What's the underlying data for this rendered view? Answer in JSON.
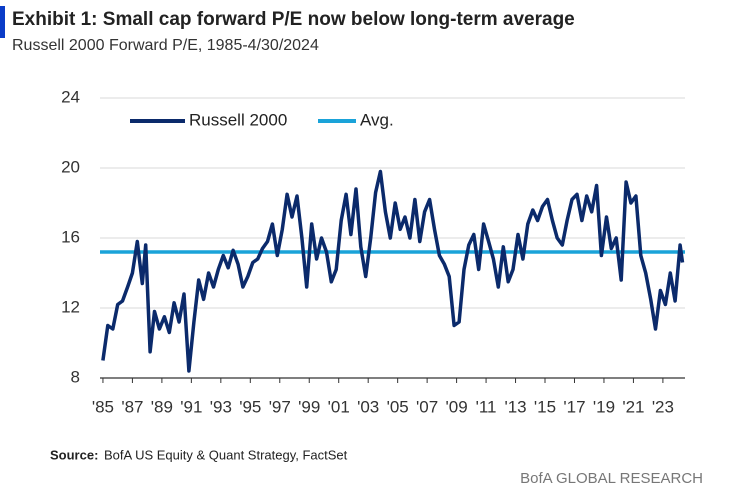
{
  "chart_data": {
    "type": "line",
    "title": "Exhibit 1: Small cap forward P/E now below long-term average",
    "subtitle": "Russell 2000 Forward P/E, 1985-4/30/2024",
    "source_label": "Source:",
    "source": "BofA US Equity & Quant Strategy, FactSet",
    "footer": "BofA GLOBAL RESEARCH",
    "x": [
      1985.0,
      1985.33,
      1985.67,
      1986.0,
      1986.33,
      1986.67,
      1987.0,
      1987.33,
      1987.67,
      1987.9,
      1988.2,
      1988.5,
      1988.83,
      1989.17,
      1989.5,
      1989.83,
      1990.17,
      1990.5,
      1990.83,
      1991.17,
      1991.5,
      1991.83,
      1992.17,
      1992.5,
      1992.83,
      1993.17,
      1993.5,
      1993.83,
      1994.17,
      1994.5,
      1994.83,
      1995.17,
      1995.5,
      1995.83,
      1996.17,
      1996.5,
      1996.83,
      1997.17,
      1997.5,
      1997.83,
      1998.17,
      1998.5,
      1998.83,
      1999.17,
      1999.5,
      1999.83,
      2000.17,
      2000.5,
      2000.83,
      2001.17,
      2001.5,
      2001.83,
      2002.17,
      2002.5,
      2002.83,
      2003.17,
      2003.5,
      2003.83,
      2004.17,
      2004.5,
      2004.83,
      2005.17,
      2005.5,
      2005.83,
      2006.17,
      2006.5,
      2006.83,
      2007.17,
      2007.5,
      2007.83,
      2008.17,
      2008.5,
      2008.83,
      2009.17,
      2009.5,
      2009.83,
      2010.17,
      2010.5,
      2010.83,
      2011.17,
      2011.5,
      2011.83,
      2012.17,
      2012.5,
      2012.83,
      2013.17,
      2013.5,
      2013.83,
      2014.17,
      2014.5,
      2014.83,
      2015.17,
      2015.5,
      2015.83,
      2016.17,
      2016.5,
      2016.83,
      2017.17,
      2017.5,
      2017.83,
      2018.17,
      2018.5,
      2018.83,
      2019.17,
      2019.5,
      2019.83,
      2020.17,
      2020.5,
      2020.83,
      2021.17,
      2021.5,
      2021.83,
      2022.17,
      2022.5,
      2022.83,
      2023.17,
      2023.5,
      2023.83,
      2024.17,
      2024.33
    ],
    "series": [
      {
        "name": "Russell 2000",
        "color": "#0b2a6b",
        "values": [
          9.0,
          11.0,
          10.8,
          12.2,
          12.4,
          13.2,
          14.0,
          15.8,
          13.4,
          15.6,
          9.5,
          11.8,
          10.8,
          11.5,
          10.6,
          12.3,
          11.2,
          12.8,
          8.4,
          11.2,
          13.6,
          12.5,
          14.0,
          13.2,
          14.2,
          15.0,
          14.3,
          15.3,
          14.5,
          13.2,
          13.8,
          14.6,
          14.8,
          15.4,
          15.8,
          16.8,
          15.0,
          16.5,
          18.5,
          17.2,
          18.4,
          16.0,
          13.2,
          16.8,
          14.8,
          16.0,
          15.2,
          13.5,
          14.2,
          17.0,
          18.5,
          16.2,
          18.8,
          15.5,
          13.8,
          16.0,
          18.6,
          19.8,
          17.5,
          16.0,
          18.0,
          16.5,
          17.2,
          16.0,
          18.2,
          15.8,
          17.5,
          18.2,
          16.5,
          15.0,
          14.5,
          13.8,
          11.0,
          11.2,
          14.2,
          15.6,
          16.2,
          14.2,
          16.8,
          15.8,
          14.8,
          13.2,
          15.5,
          13.5,
          14.2,
          16.2,
          14.8,
          16.8,
          17.6,
          17.0,
          17.8,
          18.2,
          17.0,
          16.0,
          15.6,
          17.0,
          18.2,
          18.5,
          17.0,
          18.4,
          17.5,
          19.0,
          15.0,
          17.2,
          15.4,
          16.0,
          13.6,
          19.2,
          18.0,
          18.4,
          15.0,
          14.0,
          12.5,
          10.8,
          13.0,
          12.2,
          14.0,
          12.4,
          15.6,
          14.6
        ]
      }
    ],
    "average": {
      "name": "Avg.",
      "value": 15.2,
      "color": "#1aa3d9"
    },
    "xlim": [
      1984.8,
      2024.5
    ],
    "xticks": [
      {
        "value": 1985,
        "label": "'85"
      },
      {
        "value": 1987,
        "label": "'87"
      },
      {
        "value": 1989,
        "label": "'89"
      },
      {
        "value": 1991,
        "label": "'91"
      },
      {
        "value": 1993,
        "label": "'93"
      },
      {
        "value": 1995,
        "label": "'95"
      },
      {
        "value": 1997,
        "label": "'97"
      },
      {
        "value": 1999,
        "label": "'99"
      },
      {
        "value": 2001,
        "label": "'01"
      },
      {
        "value": 2003,
        "label": "'03"
      },
      {
        "value": 2005,
        "label": "'05"
      },
      {
        "value": 2007,
        "label": "'07"
      },
      {
        "value": 2009,
        "label": "'09"
      },
      {
        "value": 2011,
        "label": "'11"
      },
      {
        "value": 2013,
        "label": "'13"
      },
      {
        "value": 2015,
        "label": "'15"
      },
      {
        "value": 2017,
        "label": "'17"
      },
      {
        "value": 2019,
        "label": "'19"
      },
      {
        "value": 2021,
        "label": "'21"
      },
      {
        "value": 2023,
        "label": "'23"
      }
    ],
    "ylim": [
      8,
      24
    ],
    "yticks": [
      8,
      12,
      16,
      20,
      24
    ],
    "grid": true
  }
}
